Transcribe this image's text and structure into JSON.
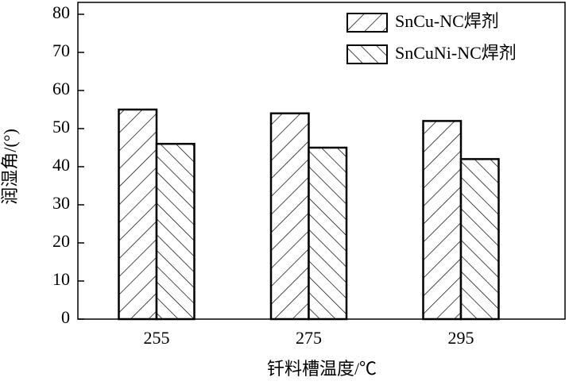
{
  "chart_data": {
    "type": "bar",
    "categories": [
      "255",
      "275",
      "295"
    ],
    "series": [
      {
        "name": "SnCu-NC焊剂",
        "color": "#000000",
        "hatch": "/",
        "values": [
          55,
          54,
          52
        ]
      },
      {
        "name": "SnCuNi-NC焊剂",
        "color": "#000000",
        "hatch": "\\",
        "values": [
          46,
          45,
          42
        ]
      }
    ],
    "xlabel": "钎料槽温度/℃",
    "ylabel": "润湿角/(°)",
    "ylim": [
      0,
      80
    ],
    "yticks": [
      0,
      10,
      20,
      30,
      40,
      50,
      60,
      70,
      80
    ],
    "grid": false,
    "legend": "upper right"
  }
}
